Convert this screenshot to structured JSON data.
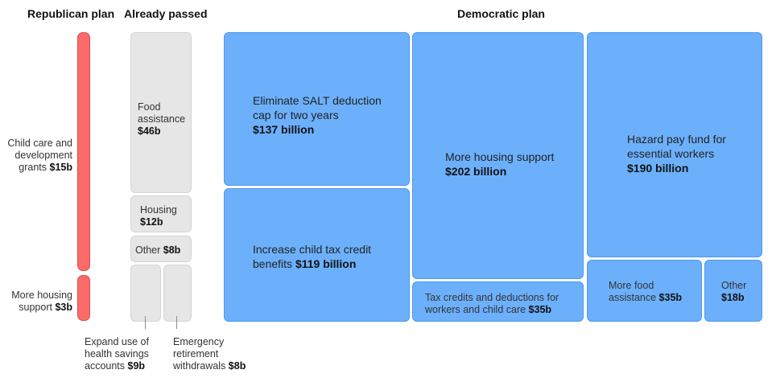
{
  "headers": {
    "republican": "Republican plan",
    "already_passed": "Already passed",
    "democratic": "Democratic plan"
  },
  "republican": {
    "child_care": {
      "label": "Child care and development grants",
      "line1": "Child care and",
      "line2": "development",
      "line3": "grants",
      "amount": "$15b"
    },
    "housing": {
      "label": "More housing support",
      "line1": "More housing",
      "line2": "support",
      "amount": "$3b"
    }
  },
  "already_passed": {
    "food": {
      "line1": "Food",
      "line2": "assistance",
      "amount": "$46b"
    },
    "housing": {
      "line1": "Housing",
      "amount": "$12b"
    },
    "other": {
      "line1": "Other",
      "amount": "$8b"
    },
    "hsa": {
      "line1": "Expand use of",
      "line2": "health savings",
      "line3": "accounts",
      "amount": "$9b"
    },
    "retirement": {
      "line1": "Emergency",
      "line2": "retirement",
      "line3": "withdrawals",
      "amount": "$8b"
    }
  },
  "democratic": {
    "salt": {
      "line1": "Eliminate SALT deduction",
      "line2": "cap for two years",
      "amount": "$137 billion"
    },
    "child_tax": {
      "line1": "Increase child tax credit",
      "line2": "benefits",
      "amount": "$119 billion"
    },
    "housing": {
      "line1": "More housing support",
      "amount": "$202 billion"
    },
    "tax_credits": {
      "line1": "Tax credits and deductions for",
      "line2": "workers and child care",
      "amount": "$35b"
    },
    "hazard": {
      "line1": "Hazard pay fund for",
      "line2": "essential workers",
      "amount": "$190 billion"
    },
    "food": {
      "line1": "More food",
      "line2": "assistance",
      "amount": "$35b"
    },
    "other": {
      "line1": "Other",
      "amount": "$18b"
    }
  },
  "colors": {
    "democratic": "#6cb0fc",
    "republican": "#fd6a6a",
    "already_passed": "#e6e6e6"
  },
  "chart_data": {
    "type": "treemap",
    "units": "billions of dollars",
    "groups": [
      {
        "name": "Republican plan",
        "items": [
          {
            "label": "Child care and development grants",
            "value": 15
          },
          {
            "label": "More housing support",
            "value": 3
          }
        ]
      },
      {
        "name": "Already passed",
        "items": [
          {
            "label": "Food assistance",
            "value": 46
          },
          {
            "label": "Housing",
            "value": 12
          },
          {
            "label": "Other",
            "value": 8
          },
          {
            "label": "Expand use of health savings accounts",
            "value": 9
          },
          {
            "label": "Emergency retirement withdrawals",
            "value": 8
          }
        ]
      },
      {
        "name": "Democratic plan",
        "items": [
          {
            "label": "Eliminate SALT deduction cap for two years",
            "value": 137
          },
          {
            "label": "Increase child tax credit benefits",
            "value": 119
          },
          {
            "label": "More housing support",
            "value": 202
          },
          {
            "label": "Tax credits and deductions for workers and child care",
            "value": 35
          },
          {
            "label": "Hazard pay fund for essential workers",
            "value": 190
          },
          {
            "label": "More food assistance",
            "value": 35
          },
          {
            "label": "Other",
            "value": 18
          }
        ]
      }
    ]
  }
}
